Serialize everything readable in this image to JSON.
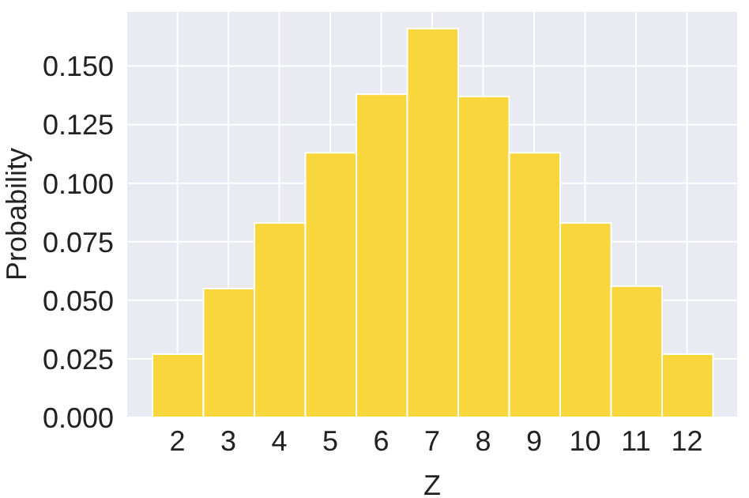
{
  "chart_data": {
    "type": "histogram",
    "xlabel": "Z",
    "ylabel": "Probability",
    "bins": [
      1.5,
      2.5,
      3.5,
      4.5,
      5.5,
      6.5,
      7.5,
      8.5,
      9.5,
      10.5,
      11.5,
      12.5
    ],
    "values": [
      0.027,
      0.055,
      0.083,
      0.113,
      0.138,
      0.166,
      0.137,
      0.113,
      0.083,
      0.056,
      0.027
    ],
    "color": "#f9d531",
    "xlim": [
      1,
      13
    ],
    "xticks": [
      2,
      3,
      4,
      5,
      6,
      7,
      8,
      9,
      10,
      11,
      12
    ],
    "ylim": [
      0,
      0.1735
    ],
    "yticks": [
      {
        "value": 0,
        "label": "0.000"
      },
      {
        "value": 0.025,
        "label": "0.025"
      },
      {
        "value": 0.05,
        "label": "0.050"
      },
      {
        "value": 0.075,
        "label": "0.075"
      },
      {
        "value": 0.1,
        "label": "0.100"
      },
      {
        "value": 0.125,
        "label": "0.125"
      },
      {
        "value": 0.15,
        "label": "0.150"
      }
    ],
    "grid": true
  }
}
